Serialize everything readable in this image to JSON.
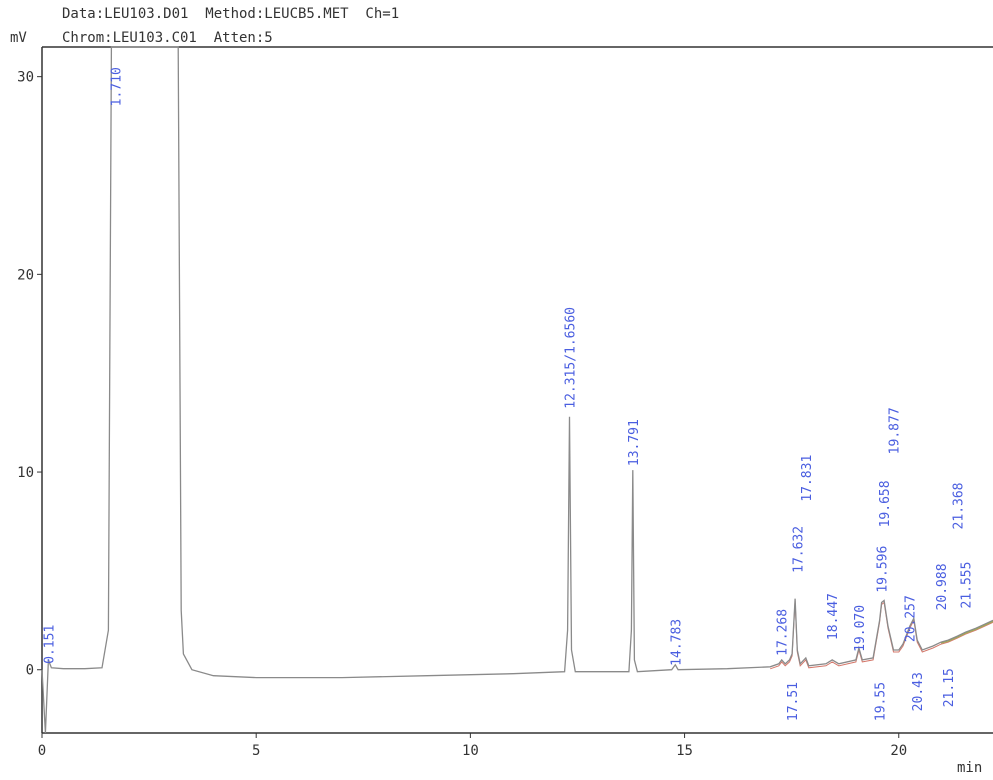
{
  "header": {
    "line1": "Data:LEU103.D01  Method:LEUCB5.MET  Ch=1",
    "line2": "Chrom:LEU103.C01  Atten:5"
  },
  "chart_data": {
    "type": "line",
    "ylabel": "mV",
    "xlabel": "min",
    "xlim": [
      0,
      22.2
    ],
    "ylim": [
      -3.2,
      31.5
    ],
    "xticks": [
      0,
      5,
      10,
      15,
      20
    ],
    "yticks": [
      0,
      10,
      20,
      30
    ],
    "colors": {
      "trace": "#8a8a8a",
      "label": "#4a5ee0",
      "frame": "#333333",
      "baseline": "#d4786b",
      "tail": "#9ab050"
    },
    "series": [
      {
        "values": [
          [
            0.0,
            0.0
          ],
          [
            0.08,
            -3.2
          ],
          [
            0.15,
            0.5
          ],
          [
            0.22,
            0.1
          ],
          [
            0.5,
            0.05
          ],
          [
            1.0,
            0.05
          ],
          [
            1.4,
            0.1
          ],
          [
            1.55,
            2.0
          ],
          [
            1.62,
            31.5
          ],
          [
            3.18,
            31.5
          ],
          [
            3.25,
            3.0
          ],
          [
            3.3,
            0.8
          ],
          [
            3.5,
            0.0
          ],
          [
            4.0,
            -0.3
          ],
          [
            5.0,
            -0.4
          ],
          [
            7.0,
            -0.4
          ],
          [
            9.0,
            -0.3
          ],
          [
            11.0,
            -0.2
          ],
          [
            12.2,
            -0.1
          ],
          [
            12.27,
            2.0
          ],
          [
            12.315,
            12.8
          ],
          [
            12.36,
            1.0
          ],
          [
            12.45,
            -0.1
          ],
          [
            13.7,
            -0.1
          ],
          [
            13.76,
            2.0
          ],
          [
            13.791,
            10.1
          ],
          [
            13.83,
            0.5
          ],
          [
            13.9,
            -0.1
          ],
          [
            14.7,
            0.0
          ],
          [
            14.783,
            0.25
          ],
          [
            14.85,
            0.0
          ],
          [
            16.0,
            0.05
          ],
          [
            17.0,
            0.15
          ],
          [
            17.2,
            0.3
          ],
          [
            17.268,
            0.5
          ],
          [
            17.35,
            0.3
          ],
          [
            17.45,
            0.5
          ],
          [
            17.51,
            0.8
          ],
          [
            17.58,
            3.6
          ],
          [
            17.632,
            1.0
          ],
          [
            17.7,
            0.3
          ],
          [
            17.831,
            0.6
          ],
          [
            17.9,
            0.2
          ],
          [
            18.3,
            0.3
          ],
          [
            18.447,
            0.5
          ],
          [
            18.6,
            0.3
          ],
          [
            19.0,
            0.5
          ],
          [
            19.07,
            1.1
          ],
          [
            19.15,
            0.5
          ],
          [
            19.4,
            0.6
          ],
          [
            19.553,
            2.5
          ],
          [
            19.6,
            3.4
          ],
          [
            19.658,
            3.5
          ],
          [
            19.75,
            2.2
          ],
          [
            19.877,
            1.0
          ],
          [
            20.0,
            1.0
          ],
          [
            20.1,
            1.3
          ],
          [
            20.257,
            2.2
          ],
          [
            20.35,
            2.6
          ],
          [
            20.43,
            1.5
          ],
          [
            20.55,
            1.0
          ],
          [
            20.8,
            1.2
          ],
          [
            20.988,
            1.4
          ],
          [
            21.155,
            1.5
          ],
          [
            21.368,
            1.7
          ],
          [
            21.555,
            1.9
          ],
          [
            21.8,
            2.1
          ],
          [
            22.0,
            2.3
          ],
          [
            22.2,
            2.5
          ]
        ]
      }
    ],
    "peak_labels": [
      {
        "text": "0.151",
        "x": 0.151,
        "y": 0.3
      },
      {
        "text": "1.710",
        "x": 1.71,
        "y": 28.5
      },
      {
        "text": "12.315/1.6560",
        "x": 12.315,
        "y": 13.2
      },
      {
        "text": "13.791",
        "x": 13.791,
        "y": 10.3
      },
      {
        "text": "14.783",
        "x": 14.783,
        "y": 0.2
      },
      {
        "text": "17.268",
        "x": 17.268,
        "y": 0.7
      },
      {
        "text": "17.632",
        "x": 17.632,
        "y": 4.9
      },
      {
        "text": "17.831",
        "x": 17.831,
        "y": 8.5
      },
      {
        "text": "18.447",
        "x": 18.447,
        "y": 1.5
      },
      {
        "text": "19.070",
        "x": 19.07,
        "y": 0.9
      },
      {
        "text": "19.596",
        "x": 19.596,
        "y": 3.9
      },
      {
        "text": "19.658",
        "x": 19.658,
        "y": 7.2
      },
      {
        "text": "19.877",
        "x": 19.877,
        "y": 10.9
      },
      {
        "text": "20.257",
        "x": 20.257,
        "y": 1.4
      },
      {
        "text": "20.988",
        "x": 20.988,
        "y": 3.0
      },
      {
        "text": "21.555",
        "x": 21.555,
        "y": 3.1
      },
      {
        "text": "21.368",
        "x": 21.368,
        "y": 7.1
      },
      {
        "text": "17.51",
        "x": 17.51,
        "y": -2.6
      },
      {
        "text": "19.55",
        "x": 19.553,
        "y": -2.6
      },
      {
        "text": "20.43",
        "x": 20.43,
        "y": -2.1
      },
      {
        "text": "21.15",
        "x": 21.155,
        "y": -1.9
      }
    ]
  }
}
